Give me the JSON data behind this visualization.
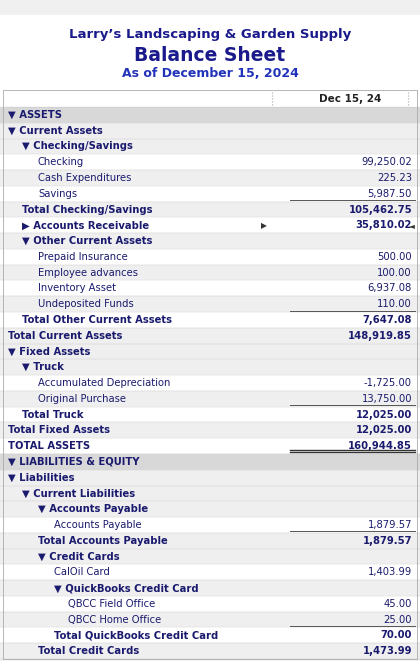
{
  "title1": "Larry’s Landscaping & Garden Supply",
  "title2": "Balance Sheet",
  "title3": "As of December 15, 2024",
  "col_header": "Dec 15, 24",
  "title1_color": "#1a1a8c",
  "title2_color": "#1a1a8c",
  "title3_color": "#2233bb",
  "text_color": "#1a1a6e",
  "section_bg": "#d8d8d8",
  "light_bg": "#efefef",
  "white_bg": "#ffffff",
  "rows": [
    {
      "label": "▼ ASSETS",
      "value": null,
      "indent": 0,
      "bold": true,
      "bg": "#d8d8d8",
      "section": true
    },
    {
      "label": "▼ Current Assets",
      "value": null,
      "indent": 0,
      "bold": true,
      "bg": "#efefef",
      "section": false
    },
    {
      "label": "▼ Checking/Savings",
      "value": null,
      "indent": 1,
      "bold": true,
      "bg": "#efefef",
      "section": false
    },
    {
      "label": "Checking",
      "value": "99,250.02",
      "indent": 2,
      "bold": false,
      "bg": "#ffffff"
    },
    {
      "label": "Cash Expenditures",
      "value": "225.23",
      "indent": 2,
      "bold": false,
      "bg": "#efefef"
    },
    {
      "label": "Savings",
      "value": "5,987.50",
      "indent": 2,
      "bold": false,
      "bg": "#ffffff",
      "underline_val": true
    },
    {
      "label": "Total Checking/Savings",
      "value": "105,462.75",
      "indent": 1,
      "bold": true,
      "bg": "#efefef"
    },
    {
      "label": "▶ Accounts Receivable",
      "value": "35,810.02",
      "indent": 1,
      "bold": true,
      "bg": "#ffffff",
      "arrow": true
    },
    {
      "label": "▼ Other Current Assets",
      "value": null,
      "indent": 1,
      "bold": true,
      "bg": "#efefef"
    },
    {
      "label": "Prepaid Insurance",
      "value": "500.00",
      "indent": 2,
      "bold": false,
      "bg": "#ffffff"
    },
    {
      "label": "Employee advances",
      "value": "100.00",
      "indent": 2,
      "bold": false,
      "bg": "#efefef"
    },
    {
      "label": "Inventory Asset",
      "value": "6,937.08",
      "indent": 2,
      "bold": false,
      "bg": "#ffffff"
    },
    {
      "label": "Undeposited Funds",
      "value": "110.00",
      "indent": 2,
      "bold": false,
      "bg": "#efefef",
      "underline_val": true
    },
    {
      "label": "Total Other Current Assets",
      "value": "7,647.08",
      "indent": 1,
      "bold": true,
      "bg": "#ffffff"
    },
    {
      "label": "Total Current Assets",
      "value": "148,919.85",
      "indent": 0,
      "bold": true,
      "bg": "#efefef"
    },
    {
      "label": "▼ Fixed Assets",
      "value": null,
      "indent": 0,
      "bold": true,
      "bg": "#efefef"
    },
    {
      "label": "▼ Truck",
      "value": null,
      "indent": 1,
      "bold": true,
      "bg": "#efefef"
    },
    {
      "label": "Accumulated Depreciation",
      "value": "-1,725.00",
      "indent": 2,
      "bold": false,
      "bg": "#ffffff"
    },
    {
      "label": "Original Purchase",
      "value": "13,750.00",
      "indent": 2,
      "bold": false,
      "bg": "#efefef",
      "underline_val": true
    },
    {
      "label": "Total Truck",
      "value": "12,025.00",
      "indent": 1,
      "bold": true,
      "bg": "#ffffff"
    },
    {
      "label": "Total Fixed Assets",
      "value": "12,025.00",
      "indent": 0,
      "bold": true,
      "bg": "#efefef"
    },
    {
      "label": "TOTAL ASSETS",
      "value": "160,944.85",
      "indent": 0,
      "bold": true,
      "bg": "#ffffff",
      "double_underline": true
    },
    {
      "label": "▼ LIABILITIES & EQUITY",
      "value": null,
      "indent": 0,
      "bold": true,
      "bg": "#d8d8d8",
      "section": true
    },
    {
      "label": "▼ Liabilities",
      "value": null,
      "indent": 0,
      "bold": true,
      "bg": "#efefef"
    },
    {
      "label": "▼ Current Liabilities",
      "value": null,
      "indent": 1,
      "bold": true,
      "bg": "#efefef"
    },
    {
      "label": "▼ Accounts Payable",
      "value": null,
      "indent": 2,
      "bold": true,
      "bg": "#efefef"
    },
    {
      "label": "Accounts Payable",
      "value": "1,879.57",
      "indent": 3,
      "bold": false,
      "bg": "#ffffff",
      "underline_val": true
    },
    {
      "label": "Total Accounts Payable",
      "value": "1,879.57",
      "indent": 2,
      "bold": true,
      "bg": "#efefef"
    },
    {
      "label": "▼ Credit Cards",
      "value": null,
      "indent": 2,
      "bold": true,
      "bg": "#efefef"
    },
    {
      "label": "CalOil Card",
      "value": "1,403.99",
      "indent": 3,
      "bold": false,
      "bg": "#ffffff"
    },
    {
      "label": "▼ QuickBooks Credit Card",
      "value": null,
      "indent": 3,
      "bold": true,
      "bg": "#efefef"
    },
    {
      "label": "QBCC Field Office",
      "value": "45.00",
      "indent": 4,
      "bold": false,
      "bg": "#ffffff"
    },
    {
      "label": "QBCC Home Office",
      "value": "25.00",
      "indent": 4,
      "bold": false,
      "bg": "#efefef",
      "underline_val": true
    },
    {
      "label": "Total QuickBooks Credit Card",
      "value": "70.00",
      "indent": 3,
      "bold": true,
      "bg": "#ffffff"
    },
    {
      "label": "Total Credit Cards",
      "value": "1,473.99",
      "indent": 2,
      "bold": true,
      "bg": "#efefef"
    }
  ]
}
